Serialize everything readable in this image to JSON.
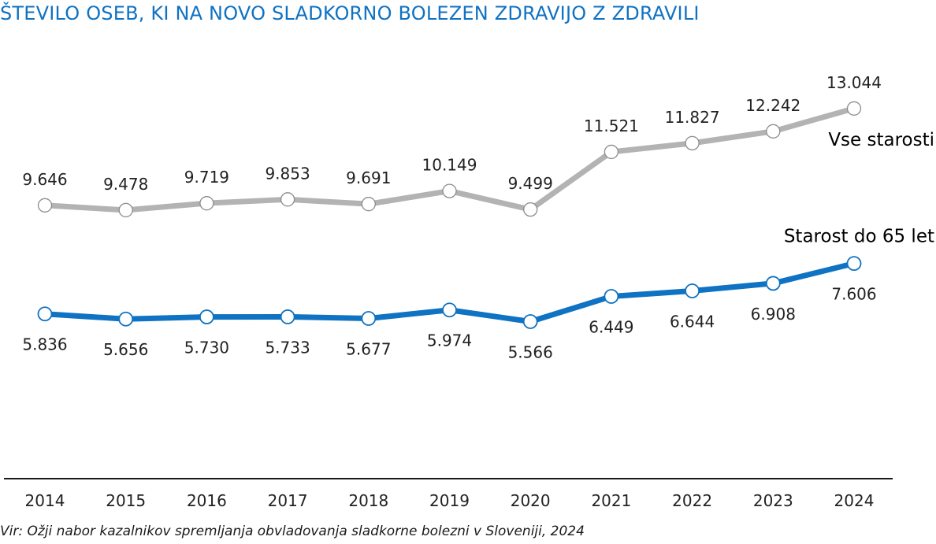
{
  "chart_data": {
    "type": "line",
    "title": "ŠTEVILO OSEB, KI NA NOVO SLADKORNO BOLEZEN ZDRAVIJO Z ZDRAVILI",
    "source": "Vir: Ožji nabor kazalnikov spremljanja obvladovanja sladkorne bolezni v Sloveniji, 2024",
    "categories": [
      "2014",
      "2015",
      "2016",
      "2017",
      "2018",
      "2019",
      "2020",
      "2021",
      "2022",
      "2023",
      "2024"
    ],
    "series": [
      {
        "name": "Vse starosti",
        "color": "#b3b3b3",
        "values": [
          9646,
          9478,
          9719,
          9853,
          9691,
          10149,
          9499,
          11521,
          11827,
          12242,
          13044
        ],
        "labels": [
          "9.646",
          "9.478",
          "9.719",
          "9.853",
          "9.691",
          "10.149",
          "9.499",
          "11.521",
          "11.827",
          "12.242",
          "13.044"
        ],
        "label_position": "above"
      },
      {
        "name": "Starost do 65 let",
        "color": "#0f72c2",
        "values": [
          5836,
          5656,
          5730,
          5733,
          5677,
          5974,
          5566,
          6449,
          6644,
          6908,
          7606
        ],
        "labels": [
          "5.836",
          "5.656",
          "5.730",
          "5.733",
          "5.677",
          "5.974",
          "5.566",
          "6.449",
          "6.644",
          "6.908",
          "7.606"
        ],
        "label_position": "below"
      }
    ],
    "grid": false,
    "y_axis_visible": false,
    "legend": "none (series names printed at line ends)"
  }
}
